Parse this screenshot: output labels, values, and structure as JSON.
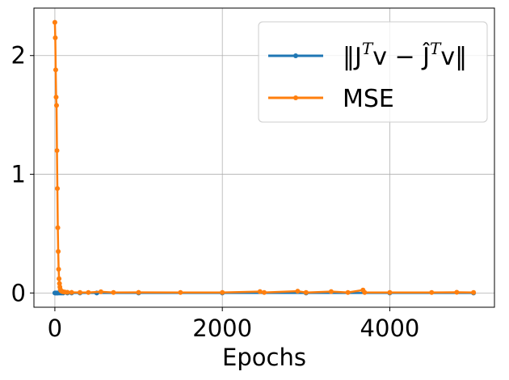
{
  "chart_data": {
    "type": "line",
    "title": "",
    "xlabel": "Epochs",
    "ylabel": "",
    "xlim": [
      -250,
      5250
    ],
    "ylim": [
      -0.12,
      2.4
    ],
    "xticks": [
      0,
      2000,
      4000
    ],
    "xtick_labels": [
      "0",
      "2000",
      "4000"
    ],
    "yticks": [
      0,
      1,
      2
    ],
    "ytick_labels": [
      "0",
      "1",
      "2"
    ],
    "grid": true,
    "legend_position": "top-right",
    "series": [
      {
        "name": "‖J^T v − Ĵ^T v‖",
        "legend": {
          "base": "‖J",
          "sup1": "T",
          "mid": "v − Ĵ",
          "sup2": "T",
          "end": "v‖"
        },
        "color": "#1f77b4",
        "x": [
          0,
          10,
          20,
          30,
          40,
          60,
          80,
          100,
          150,
          200,
          300,
          500,
          1000,
          2000,
          3000,
          4000,
          5000
        ],
        "y": [
          0.0,
          0.0,
          0.0,
          0.0,
          0.0,
          0.0,
          0.0,
          0.0,
          0.0,
          0.0,
          0.0,
          0.0,
          0.0,
          0.0,
          0.0,
          0.0,
          0.0
        ]
      },
      {
        "name": "MSE",
        "color": "#ff7f0e",
        "x": [
          0,
          5,
          10,
          15,
          20,
          25,
          30,
          35,
          40,
          45,
          50,
          55,
          60,
          65,
          70,
          80,
          90,
          100,
          120,
          150,
          200,
          300,
          400,
          550,
          700,
          1000,
          1500,
          2000,
          2450,
          2500,
          2900,
          3000,
          3300,
          3500,
          3680,
          3700,
          4000,
          4500,
          4800,
          5000
        ],
        "y": [
          2.28,
          2.15,
          1.88,
          1.65,
          1.58,
          1.2,
          0.88,
          0.55,
          0.35,
          0.2,
          0.12,
          0.08,
          0.05,
          0.03,
          0.022,
          0.015,
          0.012,
          0.01,
          0.008,
          0.006,
          0.005,
          0.004,
          0.004,
          0.01,
          0.004,
          0.005,
          0.004,
          0.004,
          0.012,
          0.004,
          0.015,
          0.004,
          0.012,
          0.004,
          0.025,
          0.004,
          0.004,
          0.004,
          0.006,
          0.004
        ]
      }
    ]
  }
}
